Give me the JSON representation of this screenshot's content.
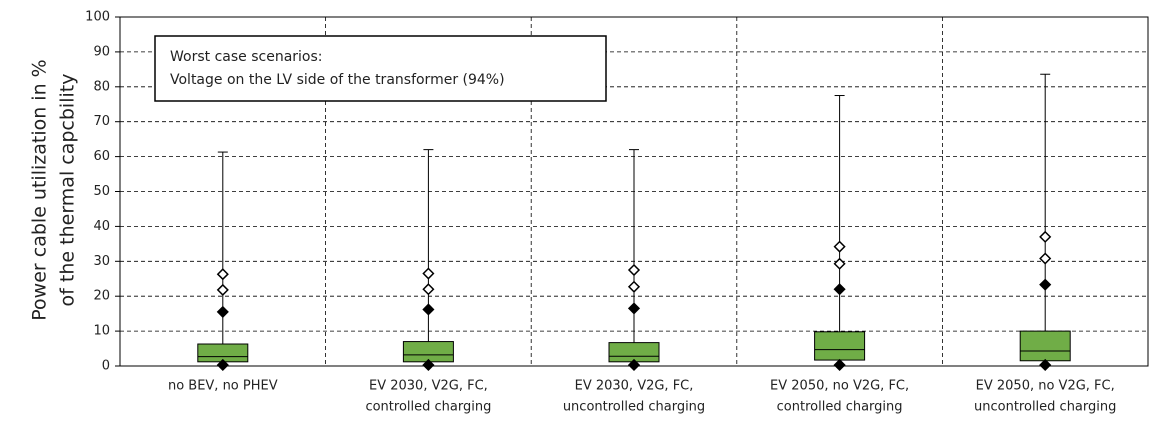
{
  "chart_data": {
    "type": "box",
    "ylabel": [
      "Power cable utilization in %",
      "of the thermal capcbility"
    ],
    "annotation": [
      "Worst case scenarios:",
      "Voltage on the LV side of the transformer (94%)"
    ],
    "categories": [
      [
        "no BEV, no PHEV"
      ],
      [
        "EV 2030, V2G, FC,",
        "controlled charging"
      ],
      [
        "EV 2030, V2G, FC,",
        "uncontrolled charging"
      ],
      [
        "EV 2050, no V2G, FC,",
        "controlled charging"
      ],
      [
        "EV 2050, no V2G, FC,",
        "uncontrolled charging"
      ]
    ],
    "boxes": [
      {
        "whisker_low": 0,
        "q1": 1.2,
        "median": 2.7,
        "q3": 6.3,
        "whisker_high": 61.3
      },
      {
        "whisker_low": 0,
        "q1": 1.2,
        "median": 3.2,
        "q3": 7.0,
        "whisker_high": 62
      },
      {
        "whisker_low": 0,
        "q1": 1.2,
        "median": 2.8,
        "q3": 6.7,
        "whisker_high": 62
      },
      {
        "whisker_low": 0,
        "q1": 1.7,
        "median": 4.7,
        "q3": 9.8,
        "whisker_high": 77.5
      },
      {
        "whisker_low": 0,
        "q1": 1.5,
        "median": 4.3,
        "q3": 10.0,
        "whisker_high": 83.6
      }
    ],
    "filled_markers": [
      [
        0.3,
        15.5
      ],
      [
        0.3,
        16.2
      ],
      [
        0.3,
        16.5
      ],
      [
        0.3,
        22.0
      ],
      [
        0.3,
        23.3
      ]
    ],
    "open_markers": [
      [
        21.8,
        26.3
      ],
      [
        22.0,
        26.5
      ],
      [
        22.7,
        27.5
      ],
      [
        29.3,
        34.2
      ],
      [
        30.8,
        37.0
      ]
    ],
    "color": "#70ad47",
    "ylim": [
      0,
      100
    ],
    "yticks": [
      0,
      10,
      20,
      30,
      40,
      50,
      60,
      70,
      80,
      90,
      100
    ],
    "grid": true
  }
}
